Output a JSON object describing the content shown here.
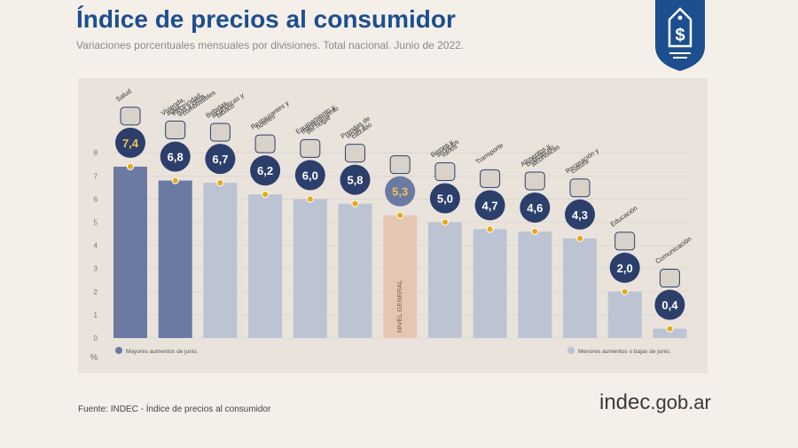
{
  "header": {
    "title": "Índice de precios al consumidor",
    "subtitle": "Variaciones porcentuales mensuales por divisiones. Total nacional. Junio de 2022."
  },
  "footer": {
    "source": "Fuente: INDEC - Índice de precios al consumidor",
    "logo_main": "indec",
    "logo_domain": ".gob.ar"
  },
  "colors": {
    "higher": "#6a7aa3",
    "lower": "#bcc3d3",
    "general": "#e6c6b3",
    "label_circle": "#2c3f6b",
    "marker": "#e8a919",
    "badge": "#1d4e8f"
  },
  "icons": [
    "first-aid-icon",
    "house-utilities-icon",
    "bottle-glass-icon",
    "fork-knife-icon",
    "sofa-icon",
    "clothing-icon",
    "shopping-icon",
    "comb-icon",
    "car-icon",
    "food-basket-icon",
    "umbrella-icon",
    "books-icon",
    "phone-icon"
  ],
  "chart_data": {
    "type": "bar",
    "title": "Índice de precios al consumidor",
    "subtitle": "Variaciones porcentuales mensuales por divisiones. Total nacional. Junio de 2022.",
    "ylabel": "%",
    "ylim": [
      0,
      8
    ],
    "yticks": [
      "0",
      "1",
      "2",
      "3",
      "4",
      "5",
      "6",
      "7",
      "8"
    ],
    "categories": [
      "Salud",
      "Vivienda, agua, electricidad, gas y otros combustibles",
      "Bebidas alcohólicas y tabaco",
      "Restaurantes y hoteles",
      "Equipamiento y mantenimiento del hogar",
      "Prendas de vestir y calzado",
      "Nivel general",
      "Bienes y servicios varios",
      "Transporte",
      "Alimentos y bebidas no alcohólicas",
      "Recreación y cultura",
      "Educación",
      "Comunicación"
    ],
    "labels": [
      "Salud",
      "Vivienda, agua, electricidad, gas y otros combustibles",
      "Bebidas alcohólicas y tabaco",
      "Restaurantes y hoteles",
      "Equipamiento y mantenimiento del hogar",
      "Prendas de vestir y calzado",
      "NIVEL GENERAL",
      "Bienes y servicios varios",
      "Transporte",
      "Alimentos y bebidas no alcohólicas",
      "Recreación y cultura",
      "Educación",
      "Comunicación"
    ],
    "values": [
      7.4,
      6.8,
      6.7,
      6.2,
      6.0,
      5.8,
      5.3,
      5.0,
      4.7,
      4.6,
      4.3,
      2.0,
      0.4
    ],
    "value_labels": [
      "7,4",
      "6,8",
      "6,7",
      "6,2",
      "6,0",
      "5,8",
      "5,3",
      "5,0",
      "4,7",
      "4,6",
      "4,3",
      "2,0",
      "0,4"
    ],
    "groups": [
      "higher",
      "higher",
      "lower",
      "lower",
      "lower",
      "lower",
      "general",
      "lower",
      "lower",
      "lower",
      "lower",
      "lower",
      "lower"
    ],
    "legend": [
      {
        "name": "Mayores aumentos de junio.",
        "group": "higher"
      },
      {
        "name": "Menores aumentos o bajas de junio.",
        "group": "lower"
      }
    ],
    "legend_placement": "bottom",
    "grid": true
  }
}
